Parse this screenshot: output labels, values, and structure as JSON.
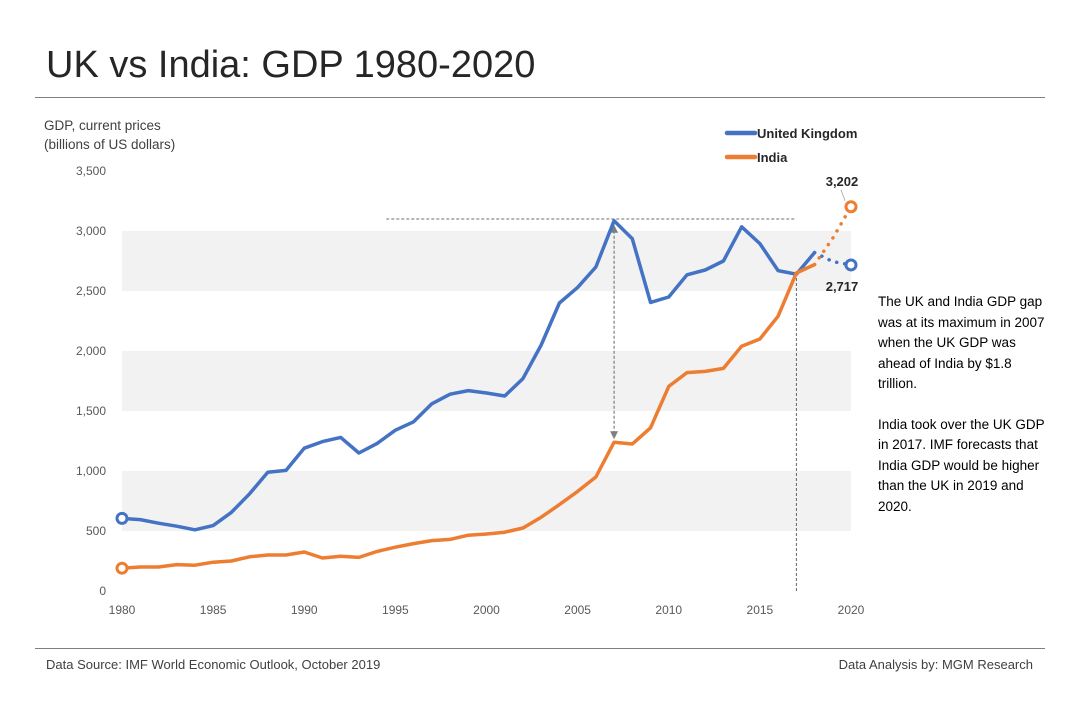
{
  "header": {
    "title": "UK vs India: GDP 1980-2020"
  },
  "axis_label": {
    "line1": "GDP, current prices",
    "line2": "(billions of US dollars)"
  },
  "annotation": {
    "para1": "The UK and India GDP gap was at its maximum in 2007 when the UK GDP was ahead of India by $1.8 trillion.",
    "para2": "India took over the UK GDP in 2017. IMF forecasts that India GDP would be higher than the UK in 2019 and 2020."
  },
  "footer": {
    "source": "Data Source: IMF World Economic Outlook, October 2019",
    "credit": "Data Analysis by: MGM Research"
  },
  "colors": {
    "uk": "#4472C4",
    "india": "#ED7D31",
    "band": "#F2F2F2",
    "ref_line": "#404040"
  },
  "chart_data": {
    "type": "line",
    "title": "UK vs India: GDP 1980-2020",
    "xlabel": "",
    "ylabel": "GDP, current prices (billions of US dollars)",
    "xlim": [
      1980,
      2020
    ],
    "ylim": [
      0,
      3500
    ],
    "y_ticks": [
      0,
      500,
      1000,
      1500,
      2000,
      2500,
      3000,
      3500
    ],
    "y_tick_labels": [
      "0",
      "500",
      "1,000",
      "1,500",
      "2,000",
      "2,500",
      "3,000",
      "3,500"
    ],
    "x_ticks": [
      1980,
      1985,
      1990,
      1995,
      2000,
      2005,
      2010,
      2015,
      2020
    ],
    "x_tick_labels": [
      "1980",
      "1985",
      "1990",
      "1995",
      "2000",
      "2005",
      "2010",
      "2015",
      "2020"
    ],
    "legend_position": "top-right",
    "series": [
      {
        "name": "United Kingdom",
        "x": [
          1980,
          1981,
          1982,
          1983,
          1984,
          1985,
          1986,
          1987,
          1988,
          1989,
          1990,
          1991,
          1992,
          1993,
          1994,
          1995,
          1996,
          1997,
          1998,
          1999,
          2000,
          2001,
          2002,
          2003,
          2004,
          2005,
          2006,
          2007,
          2008,
          2009,
          2010,
          2011,
          2012,
          2013,
          2014,
          2015,
          2016,
          2017,
          2018
        ],
        "values": [
          605,
          595,
          565,
          540,
          510,
          545,
          655,
          810,
          990,
          1005,
          1190,
          1245,
          1280,
          1150,
          1230,
          1340,
          1410,
          1560,
          1640,
          1670,
          1650,
          1625,
          1770,
          2050,
          2400,
          2530,
          2700,
          3085,
          2935,
          2405,
          2450,
          2635,
          2675,
          2750,
          3035,
          2895,
          2670,
          2640,
          2820
        ],
        "forecast_x": [
          2018,
          2019,
          2020
        ],
        "forecast_values": [
          2820,
          2745,
          2717
        ]
      },
      {
        "name": "India",
        "x": [
          1980,
          1981,
          1982,
          1983,
          1984,
          1985,
          1986,
          1987,
          1988,
          1989,
          1990,
          1991,
          1992,
          1993,
          1994,
          1995,
          1996,
          1997,
          1998,
          1999,
          2000,
          2001,
          2002,
          2003,
          2004,
          2005,
          2006,
          2007,
          2008,
          2009,
          2010,
          2011,
          2012,
          2013,
          2014,
          2015,
          2016,
          2017,
          2018
        ],
        "values": [
          190,
          200,
          200,
          220,
          215,
          240,
          250,
          285,
          300,
          300,
          325,
          275,
          290,
          280,
          330,
          365,
          395,
          420,
          430,
          465,
          475,
          490,
          525,
          615,
          720,
          830,
          950,
          1240,
          1225,
          1360,
          1705,
          1820,
          1830,
          1855,
          2040,
          2100,
          2290,
          2650,
          2720
        ],
        "forecast_x": [
          2018,
          2019,
          2020
        ],
        "forecast_values": [
          2720,
          2940,
          3202
        ]
      }
    ],
    "data_labels": [
      {
        "series": "India",
        "x": 2020,
        "value": 3202,
        "text": "3,202"
      },
      {
        "series": "United Kingdom",
        "x": 2020,
        "value": 2717,
        "text": "2,717"
      }
    ],
    "reference_lines": {
      "max_level": {
        "value": 3100,
        "x_from": 1994.5,
        "x_to": 2017
      },
      "gap_year": 2007,
      "crossover_year": 2017
    }
  }
}
